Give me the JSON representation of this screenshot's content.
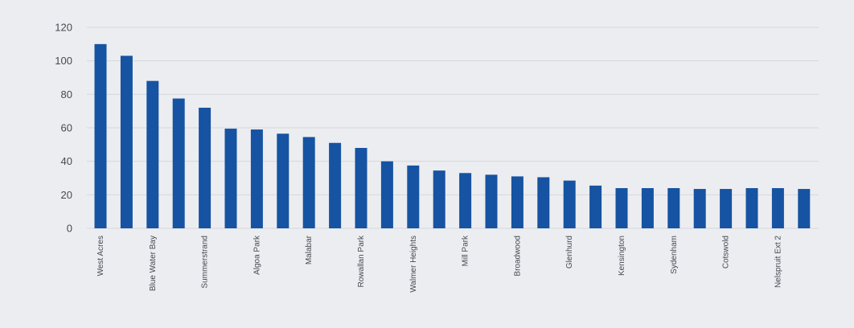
{
  "chart_data": {
    "type": "bar",
    "title": "",
    "xlabel": "",
    "ylabel": "",
    "ylim": [
      0,
      120
    ],
    "yticks": [
      0,
      20,
      40,
      60,
      80,
      100,
      120
    ],
    "grid": true,
    "bar_color": "#1653a2",
    "grid_color": "#d5d7dd",
    "categories": [
      "West Acres",
      "",
      "Blue Water Bay",
      "",
      "Summerstrand",
      "",
      "Algoa Park",
      "",
      "Malabar",
      "",
      "Rowallan Park",
      "",
      "Walmer Heights",
      "",
      "Mill Park",
      "",
      "Broadwood",
      "",
      "Glenhurd",
      "",
      "Kensington",
      "",
      "Sydenham",
      "",
      "Cotswold",
      "",
      "Nelspruit Ext 2",
      ""
    ],
    "values": [
      110,
      103,
      88,
      77.5,
      72,
      59.5,
      59,
      56.5,
      54.5,
      51,
      48,
      40,
      37.5,
      34.5,
      33,
      32,
      31,
      30.5,
      28.5,
      25.5,
      24,
      24,
      24,
      23.5,
      23.5,
      24,
      24,
      23.5
    ]
  }
}
